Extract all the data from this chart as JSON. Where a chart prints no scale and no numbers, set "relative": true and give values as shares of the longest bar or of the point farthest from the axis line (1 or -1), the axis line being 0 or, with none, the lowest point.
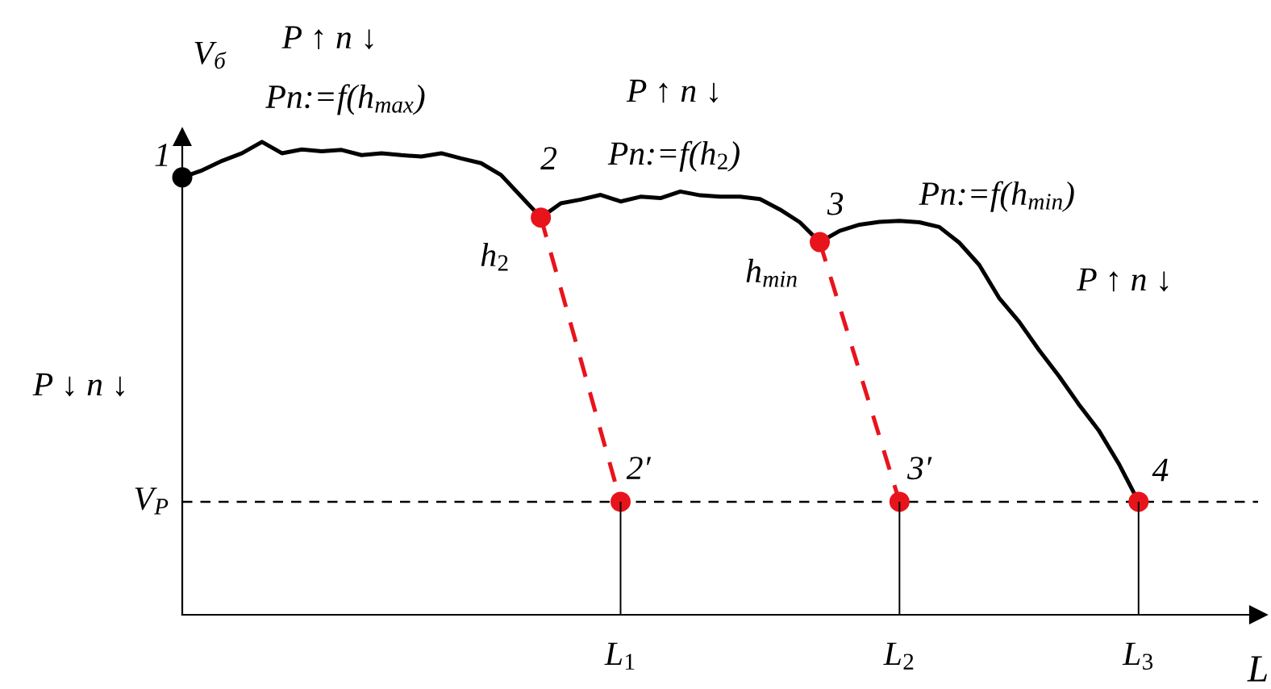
{
  "chart_data": {
    "type": "line",
    "relative": true,
    "xlabel": "L",
    "ylabel": "V$_{б}$",
    "categories": [
      null,
      null,
      null,
      null,
      null,
      null,
      null,
      null,
      null,
      null,
      null,
      null,
      null,
      null,
      null,
      null,
      null,
      null,
      null,
      null,
      null,
      null,
      "L$_{1}$",
      null,
      null,
      null,
      null,
      null,
      null,
      null,
      null,
      null,
      null,
      null,
      null,
      null,
      "L$_{2}$",
      null,
      null,
      null,
      null,
      null,
      null,
      null,
      null,
      null,
      null,
      null,
      "L$_{3}$",
      null,
      null,
      null,
      null,
      null,
      null
    ],
    "series": [
      {
        "color": "#000000",
        "values": [
          0.925,
          0.94,
          0.96,
          0.976,
          1,
          0.976,
          0.984,
          0.98,
          0.983,
          0.972,
          0.976,
          0.972,
          0.969,
          0.976,
          0.965,
          0.955,
          0.93,
          0.885,
          0.84,
          0.87,
          0.878,
          0.888,
          0.874,
          0.884,
          0.881,
          0.895,
          0.887,
          0.884,
          0.884,
          0.879,
          0.857,
          0.83,
          0.788,
          0.812,
          0.825,
          0.831,
          0.833,
          0.83,
          0.82,
          0.787,
          0.74,
          0.67,
          0.62,
          0.56,
          0.505,
          0.445,
          0.39,
          0.32,
          0.239,
          null,
          null,
          null,
          null,
          null,
          null
        ]
      },
      {
        "color": "#e8141c",
        "line_style": "dashed",
        "values": [
          null,
          null,
          null,
          null,
          null,
          null,
          null,
          null,
          null,
          null,
          null,
          null,
          null,
          null,
          null,
          null,
          null,
          null,
          0.84,
          0.69,
          0.54,
          0.389,
          0.239,
          null,
          null,
          null,
          null,
          null,
          null,
          null,
          null,
          null,
          null,
          null,
          null,
          null,
          null,
          null,
          null,
          null,
          null,
          null,
          null,
          null,
          null,
          null,
          null,
          null,
          null,
          null,
          null,
          null,
          null,
          null,
          null
        ]
      },
      {
        "color": "#e8141c",
        "line_style": "dashed",
        "values": [
          null,
          null,
          null,
          null,
          null,
          null,
          null,
          null,
          null,
          null,
          null,
          null,
          null,
          null,
          null,
          null,
          null,
          null,
          null,
          null,
          null,
          null,
          null,
          null,
          null,
          null,
          null,
          null,
          null,
          null,
          null,
          null,
          0.788,
          0.651,
          0.514,
          0.376,
          0.239,
          null,
          null,
          null,
          null,
          null,
          null,
          null,
          null,
          null,
          null,
          null,
          null,
          null,
          null,
          null,
          null,
          null,
          null
        ]
      },
      {
        "type": "bar",
        "color": "#000000",
        "values": [
          null,
          null,
          null,
          null,
          null,
          null,
          null,
          null,
          null,
          null,
          null,
          null,
          null,
          null,
          null,
          null,
          null,
          null,
          null,
          null,
          null,
          null,
          0.239,
          null,
          null,
          null,
          null,
          null,
          null,
          null,
          null,
          null,
          null,
          null,
          null,
          null,
          0.239,
          null,
          null,
          null,
          null,
          null,
          null,
          null,
          null,
          null,
          null,
          null,
          0.239,
          null,
          null,
          null,
          null,
          null,
          null
        ]
      },
      {
        "type": "scatter",
        "marker": "circle",
        "color": "#e8141c",
        "values": [
          null,
          null,
          null,
          null,
          null,
          null,
          null,
          null,
          null,
          null,
          null,
          null,
          null,
          null,
          null,
          null,
          null,
          null,
          0.84,
          null,
          null,
          null,
          0.239,
          null,
          null,
          null,
          null,
          null,
          null,
          null,
          null,
          null,
          0.788,
          null,
          null,
          null,
          0.239,
          null,
          null,
          null,
          null,
          null,
          null,
          null,
          null,
          null,
          null,
          null,
          0.239,
          null,
          null,
          null,
          null,
          null,
          null
        ]
      },
      {
        "type": "scatter",
        "marker": "circle",
        "color": "#000000",
        "values": [
          0.925,
          null,
          null,
          null,
          null,
          null,
          null,
          null,
          null,
          null,
          null,
          null,
          null,
          null,
          null,
          null,
          null,
          null,
          null,
          null,
          null,
          null,
          null,
          null,
          null,
          null,
          null,
          null,
          null,
          null,
          null,
          null,
          null,
          null,
          null,
          null,
          null,
          null,
          null,
          null,
          null,
          null,
          null,
          null,
          null,
          null,
          null,
          null,
          null,
          null,
          null,
          null,
          null,
          null,
          null
        ]
      }
    ],
    "ref_lines": [
      {
        "axis": "y",
        "value": 0.239,
        "label": "V$_{P}$",
        "color": "#000000",
        "line_style": "dashed"
      }
    ],
    "annotations": [
      "1",
      "2",
      "3",
      "4",
      "2′",
      "3′",
      "h$_{2}$",
      "h$_{min}$",
      "P ↑ n ↓",
      "Pn:=f(h$_{max}$)",
      "P ↑ n ↓",
      "Pn:=f(h$_{2}$)",
      "Pn:=f(h$_{min}$)",
      "P ↑ n ↓",
      "P ↓ n ↓"
    ]
  }
}
